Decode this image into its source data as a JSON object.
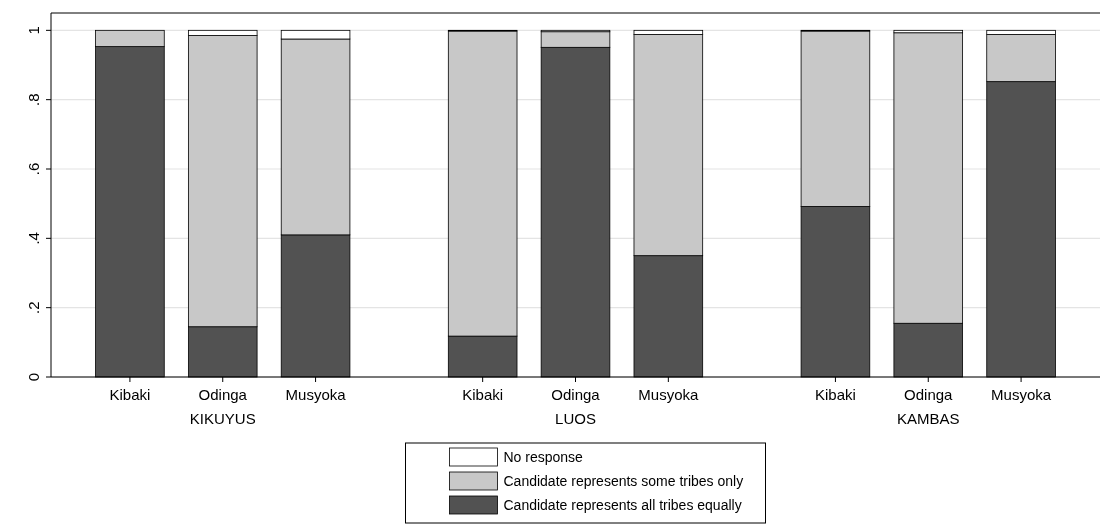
{
  "chart_data": {
    "type": "bar",
    "stacked": true,
    "categories": [
      "Kibaki",
      "Odinga",
      "Musyoka",
      "Kibaki",
      "Odinga",
      "Musyoka",
      "Kibaki",
      "Odinga",
      "Musyoka"
    ],
    "series": [
      {
        "name": "Candidate represents all tribes equally",
        "color": "#525252",
        "values": [
          0.953,
          0.145,
          0.41,
          0.118,
          0.951,
          0.35,
          0.492,
          0.155,
          0.852
        ]
      },
      {
        "name": "Candidate represents some tribes only",
        "color": "#c8c8c8",
        "values": [
          0.047,
          0.84,
          0.565,
          0.88,
          0.045,
          0.638,
          0.506,
          0.838,
          0.136
        ]
      },
      {
        "name": "No response",
        "color": "#ffffff",
        "values": [
          0,
          0.015,
          0.025,
          0.002,
          0.004,
          0.012,
          0.002,
          0.007,
          0.012
        ]
      }
    ],
    "annotations": [
      "KIKUYUS",
      "LUOS",
      "KAMBAS"
    ],
    "ylim": [
      0,
      1.05
    ],
    "yticks": [
      0,
      {
        "value": 0.2,
        "label": ".2"
      },
      {
        "value": 0.4,
        "label": ".4"
      },
      {
        "value": 0.6,
        "label": ".6"
      },
      {
        "value": 0.8,
        "label": ".8"
      },
      1
    ],
    "grid": "y",
    "legend": "bottom"
  }
}
